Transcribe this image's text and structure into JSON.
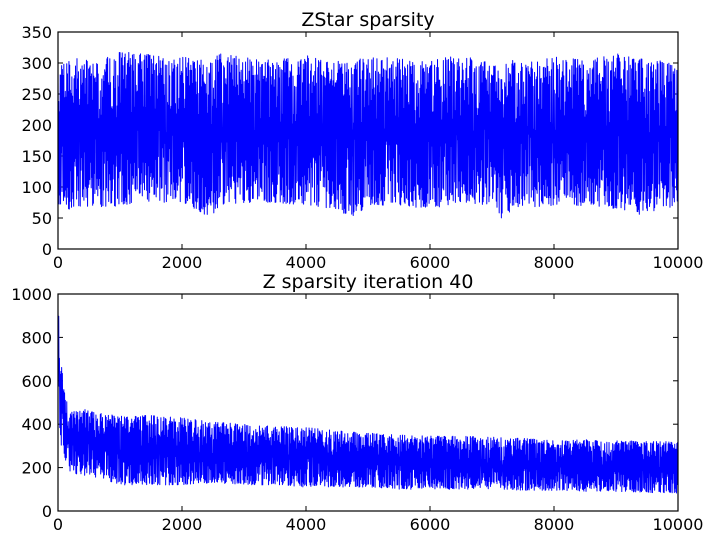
{
  "chart_data": [
    {
      "type": "line",
      "title": "ZStar sparsity",
      "xlabel": "",
      "ylabel": "",
      "xlim": [
        0,
        10000
      ],
      "ylim": [
        0,
        350
      ],
      "x_ticks": [
        0,
        2000,
        4000,
        6000,
        8000,
        10000
      ],
      "y_ticks": [
        0,
        50,
        100,
        150,
        200,
        250,
        300,
        350
      ],
      "grid": false,
      "series": [
        {
          "color": "#0000ff",
          "x": [
            0,
            100,
            300,
            600,
            1000,
            1300,
            2000,
            2300,
            2450,
            2600,
            3000,
            3500,
            4000,
            4500,
            4700,
            4800,
            5000,
            5500,
            6000,
            6500,
            7000,
            7150,
            7250,
            7400,
            7500,
            8000,
            8500,
            9000,
            9400,
            9500,
            9600,
            10000
          ],
          "y_high": [
            300,
            305,
            310,
            300,
            320,
            315,
            310,
            305,
            300,
            315,
            310,
            305,
            312,
            305,
            300,
            305,
            310,
            308,
            305,
            312,
            300,
            305,
            300,
            310,
            300,
            310,
            305,
            315,
            310,
            300,
            305,
            300
          ],
          "y_low": [
            50,
            60,
            70,
            65,
            70,
            75,
            75,
            60,
            50,
            65,
            75,
            75,
            70,
            65,
            50,
            55,
            70,
            70,
            65,
            75,
            70,
            50,
            48,
            65,
            65,
            70,
            70,
            65,
            55,
            50,
            60,
            70
          ]
        }
      ]
    },
    {
      "type": "line",
      "title": "Z sparsity iteration 40",
      "xlabel": "",
      "ylabel": "",
      "xlim": [
        0,
        10000
      ],
      "ylim": [
        0,
        1000
      ],
      "x_ticks": [
        0,
        2000,
        4000,
        6000,
        8000,
        10000
      ],
      "y_ticks": [
        0,
        200,
        400,
        600,
        800,
        1000
      ],
      "grid": false,
      "series": [
        {
          "color": "#0000ff",
          "x": [
            0,
            20,
            50,
            100,
            200,
            400,
            700,
            1000,
            1500,
            2000,
            2500,
            3000,
            3500,
            4000,
            4500,
            5000,
            5500,
            6000,
            6500,
            7000,
            7500,
            8000,
            8500,
            9000,
            9500,
            10000
          ],
          "y_high": [
            950,
            900,
            700,
            550,
            460,
            470,
            450,
            440,
            440,
            430,
            410,
            400,
            390,
            385,
            370,
            360,
            350,
            345,
            345,
            340,
            335,
            325,
            330,
            325,
            320,
            320
          ],
          "y_low": [
            650,
            400,
            300,
            250,
            180,
            160,
            150,
            120,
            120,
            120,
            130,
            120,
            120,
            110,
            110,
            110,
            100,
            100,
            100,
            100,
            95,
            95,
            90,
            90,
            85,
            80
          ]
        }
      ]
    }
  ]
}
